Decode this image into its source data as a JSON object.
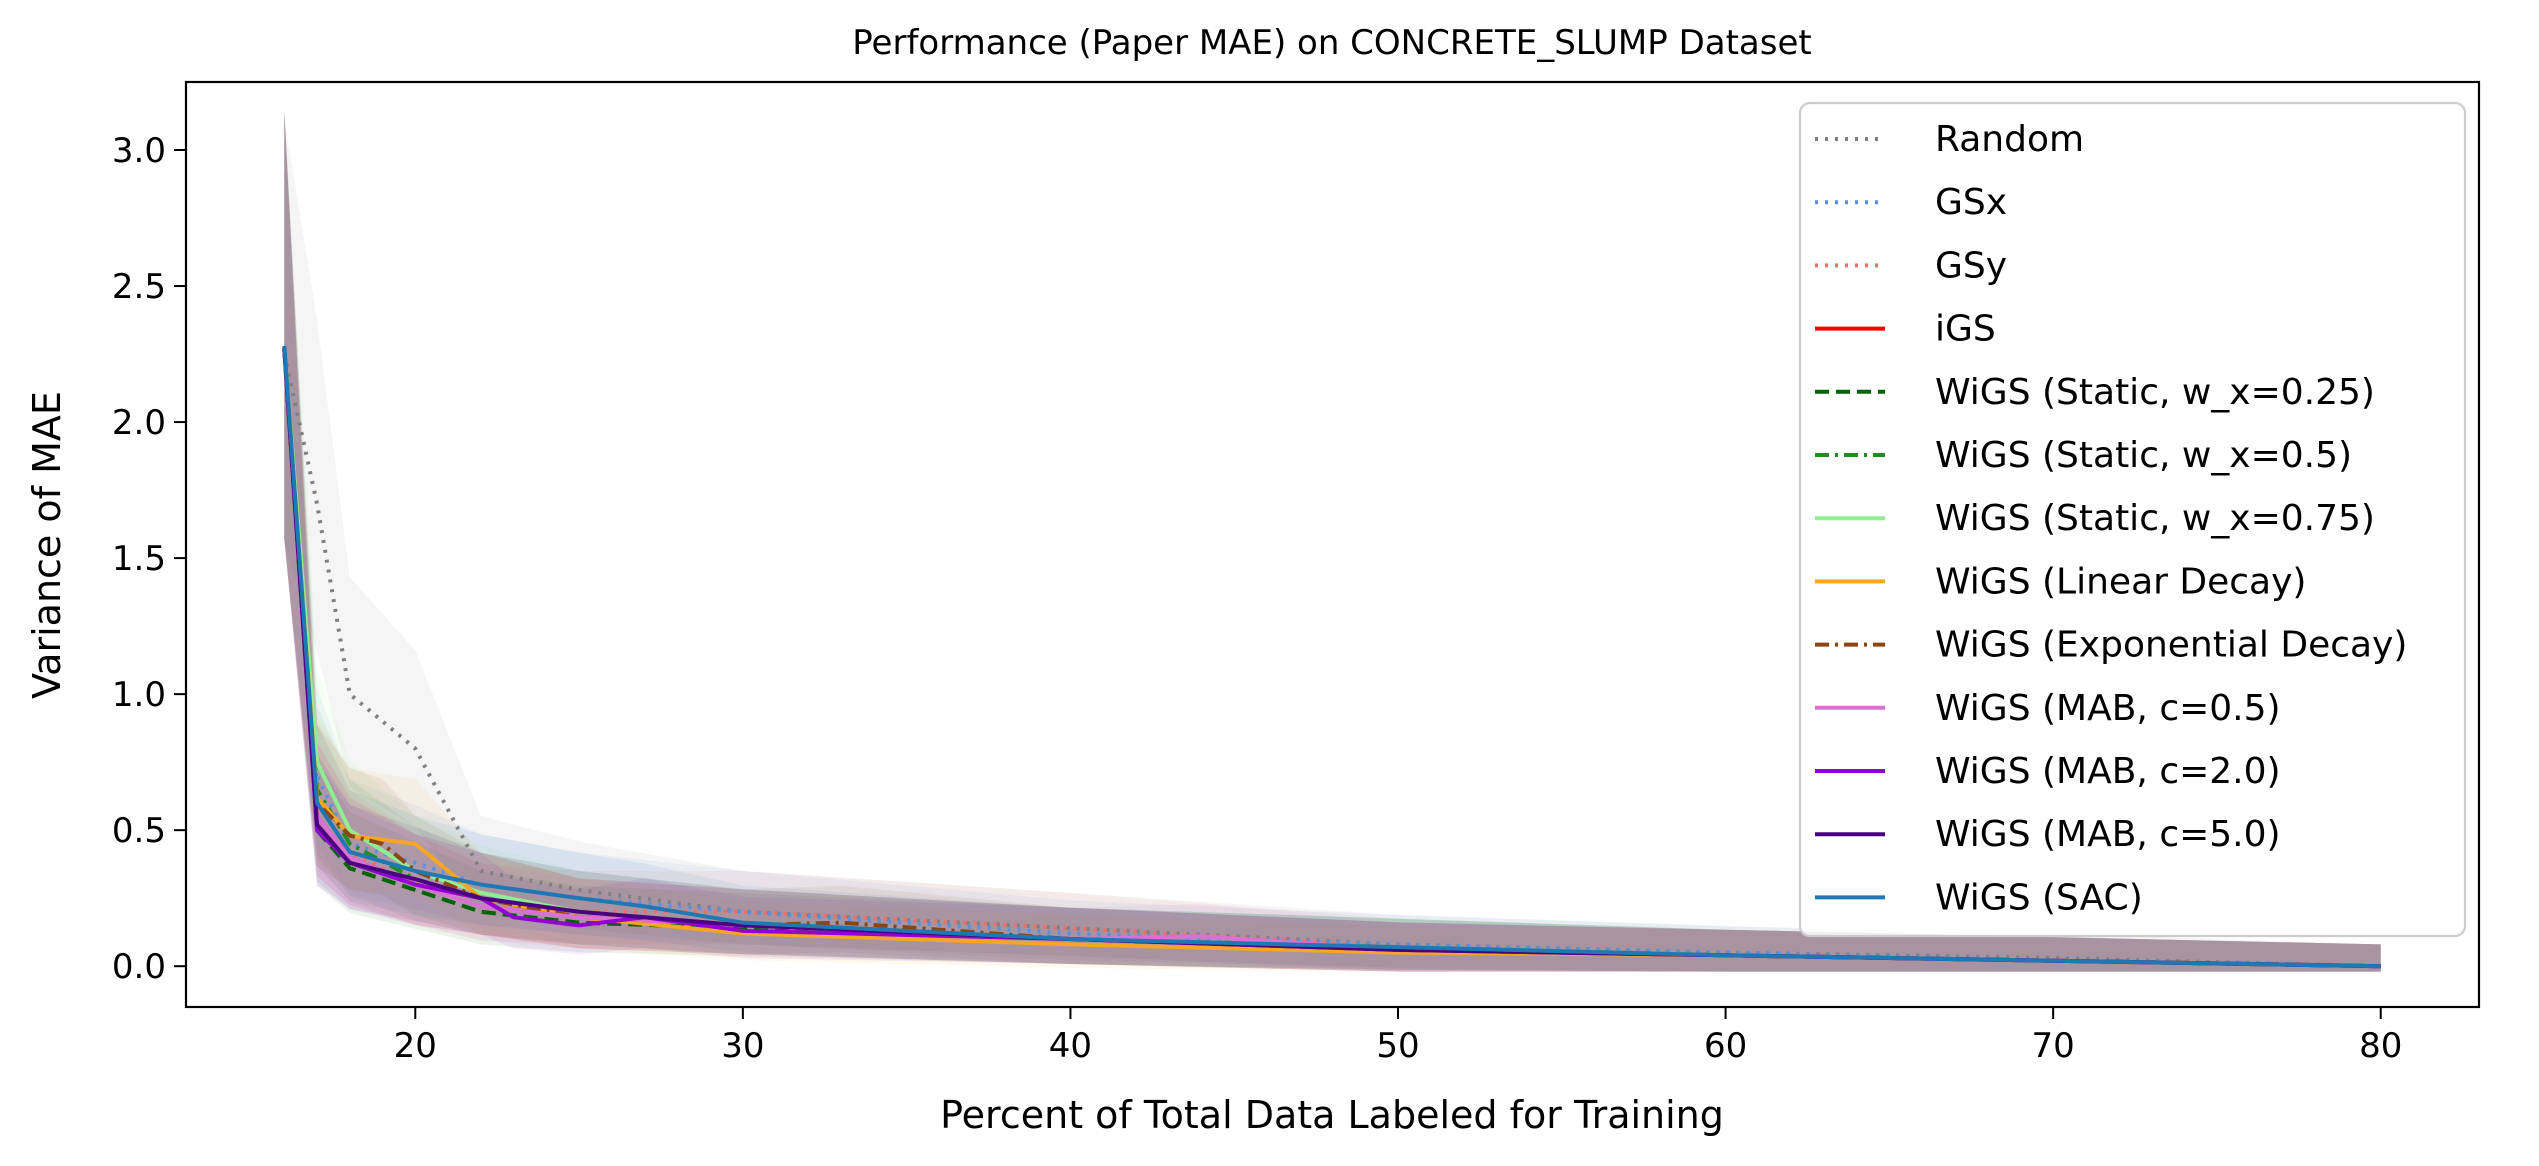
{
  "chart_data": {
    "type": "line",
    "title": "Performance (Paper MAE) on CONCRETE_SLUMP Dataset",
    "xlabel": "Percent of Total Data Labeled for Training",
    "ylabel": "Variance of MAE",
    "xlim": [
      13,
      83
    ],
    "ylim": [
      -0.15,
      3.25
    ],
    "xticks": [
      20,
      30,
      40,
      50,
      60,
      70,
      80
    ],
    "yticks": [
      0.0,
      0.5,
      1.0,
      1.5,
      2.0,
      2.5,
      3.0
    ],
    "xtick_labels": [
      "20",
      "30",
      "40",
      "50",
      "60",
      "70",
      "80"
    ],
    "ytick_labels": [
      "0.0",
      "0.5",
      "1.0",
      "1.5",
      "2.0",
      "2.5",
      "3.0"
    ],
    "grid": false,
    "legend_position": "top-right",
    "series": [
      {
        "name": "Random",
        "color": "#808080",
        "style": "dotted",
        "x": [
          16,
          17,
          18,
          20,
          22,
          25,
          30,
          40,
          50,
          60,
          70,
          80
        ],
        "y": [
          2.25,
          1.7,
          1.0,
          0.8,
          0.35,
          0.28,
          0.2,
          0.14,
          0.08,
          0.05,
          0.03,
          0.0
        ]
      },
      {
        "name": "GSx",
        "color": "#5b8fe0",
        "style": "dotted",
        "x": [
          16,
          17,
          18,
          20,
          22,
          25,
          30,
          40,
          50,
          60,
          70,
          80
        ],
        "y": [
          2.27,
          0.7,
          0.45,
          0.38,
          0.3,
          0.25,
          0.2,
          0.12,
          0.08,
          0.05,
          0.02,
          0.0
        ]
      },
      {
        "name": "GSy",
        "color": "#f07068",
        "style": "dotted",
        "x": [
          16,
          17,
          18,
          20,
          22,
          25,
          30,
          40,
          50,
          60,
          70,
          80
        ],
        "y": [
          2.27,
          0.6,
          0.42,
          0.3,
          0.22,
          0.2,
          0.2,
          0.14,
          0.07,
          0.04,
          0.02,
          0.0
        ]
      },
      {
        "name": "iGS",
        "color": "#ff0000",
        "style": "solid",
        "x": [
          16,
          17,
          18,
          20,
          22,
          25,
          30,
          40,
          50,
          60,
          70,
          80
        ],
        "y": [
          2.27,
          0.55,
          0.4,
          0.3,
          0.25,
          0.18,
          0.15,
          0.1,
          0.06,
          0.04,
          0.02,
          0.0
        ]
      },
      {
        "name": "WiGS (Static, w_x=0.25)",
        "color": "#006400",
        "style": "dashed",
        "x": [
          16,
          17,
          18,
          20,
          22,
          25,
          30,
          40,
          50,
          60,
          70,
          80
        ],
        "y": [
          2.27,
          0.5,
          0.36,
          0.28,
          0.2,
          0.16,
          0.14,
          0.1,
          0.07,
          0.04,
          0.02,
          0.0
        ]
      },
      {
        "name": "WiGS (Static, w_x=0.5)",
        "color": "#228b22",
        "style": "dashdot",
        "x": [
          16,
          17,
          18,
          20,
          22,
          25,
          30,
          40,
          50,
          60,
          70,
          80
        ],
        "y": [
          2.27,
          0.65,
          0.45,
          0.32,
          0.25,
          0.2,
          0.15,
          0.1,
          0.07,
          0.04,
          0.02,
          0.0
        ]
      },
      {
        "name": "WiGS (Static, w_x=0.75)",
        "color": "#90ee90",
        "style": "solid",
        "x": [
          16,
          17,
          18,
          20,
          22,
          25,
          30,
          40,
          50,
          60,
          70,
          80
        ],
        "y": [
          2.27,
          0.75,
          0.5,
          0.35,
          0.27,
          0.2,
          0.15,
          0.1,
          0.07,
          0.04,
          0.02,
          0.0
        ]
      },
      {
        "name": "WiGS (Linear Decay)",
        "color": "#f5a623",
        "style": "solid",
        "x": [
          16,
          17,
          18,
          20,
          21,
          22,
          25,
          30,
          40,
          50,
          60,
          70,
          80
        ],
        "y": [
          2.27,
          0.62,
          0.48,
          0.45,
          0.35,
          0.25,
          0.18,
          0.12,
          0.08,
          0.05,
          0.04,
          0.02,
          0.0
        ]
      },
      {
        "name": "WiGS (Exponential Decay)",
        "color": "#8b4513",
        "style": "dashdot",
        "x": [
          16,
          17,
          18,
          19,
          20,
          22,
          25,
          30,
          33,
          40,
          50,
          60,
          70,
          80
        ],
        "y": [
          2.27,
          0.6,
          0.48,
          0.45,
          0.35,
          0.25,
          0.18,
          0.15,
          0.16,
          0.1,
          0.06,
          0.04,
          0.02,
          0.0
        ]
      },
      {
        "name": "WiGS (MAB, c=0.5)",
        "color": "#da70d6",
        "style": "solid",
        "x": [
          16,
          17,
          18,
          20,
          22,
          25,
          30,
          40,
          44,
          50,
          60,
          70,
          80
        ],
        "y": [
          2.27,
          0.55,
          0.4,
          0.3,
          0.22,
          0.18,
          0.15,
          0.1,
          0.11,
          0.06,
          0.04,
          0.02,
          0.0
        ]
      },
      {
        "name": "WiGS (MAB, c=2.0)",
        "color": "#9400d3",
        "style": "solid",
        "x": [
          16,
          17,
          18,
          20,
          22,
          23,
          25,
          27,
          30,
          40,
          50,
          60,
          70,
          80
        ],
        "y": [
          2.27,
          0.5,
          0.38,
          0.3,
          0.25,
          0.18,
          0.15,
          0.18,
          0.13,
          0.1,
          0.06,
          0.04,
          0.02,
          0.0
        ]
      },
      {
        "name": "WiGS (MAB, c=5.0)",
        "color": "#4b0082",
        "style": "solid",
        "x": [
          16,
          17,
          18,
          20,
          22,
          25,
          30,
          40,
          50,
          60,
          70,
          80
        ],
        "y": [
          2.27,
          0.52,
          0.38,
          0.32,
          0.25,
          0.2,
          0.15,
          0.1,
          0.06,
          0.04,
          0.02,
          0.0
        ]
      },
      {
        "name": "WiGS (SAC)",
        "color": "#1f77b4",
        "style": "solid",
        "x": [
          16,
          17,
          18,
          20,
          22,
          25,
          27,
          30,
          40,
          50,
          60,
          70,
          80
        ],
        "y": [
          2.28,
          0.6,
          0.42,
          0.35,
          0.3,
          0.25,
          0.22,
          0.16,
          0.1,
          0.07,
          0.04,
          0.02,
          0.0
        ]
      }
    ]
  }
}
